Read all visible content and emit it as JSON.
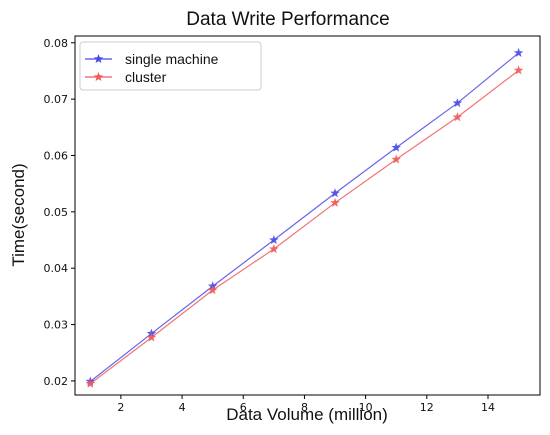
{
  "chart_data": {
    "type": "line",
    "title": "Data Write Performance",
    "xlabel": "Data Volume (million)",
    "ylabel": "Time(second)",
    "xlim": [
      0.5,
      15.7
    ],
    "ylim": [
      0.0175,
      0.0812
    ],
    "x_ticks": [
      2,
      4,
      6,
      8,
      10,
      12,
      14
    ],
    "y_ticks": [
      0.02,
      0.03,
      0.04,
      0.05,
      0.06,
      0.07,
      0.08
    ],
    "x_tick_labels": [
      "2",
      "4",
      "6",
      "8",
      "10",
      "12",
      "14"
    ],
    "y_tick_labels": [
      "0.02",
      "0.03",
      "0.04",
      "0.05",
      "0.06",
      "0.07",
      "0.08"
    ],
    "x": [
      1,
      3,
      5,
      7,
      9,
      11,
      13,
      15
    ],
    "series": [
      {
        "name": "single machine",
        "color": "#4a4ae6",
        "marker": "star",
        "values": [
          0.0199,
          0.0284,
          0.0368,
          0.045,
          0.0533,
          0.0614,
          0.0693,
          0.0782
        ]
      },
      {
        "name": "cluster",
        "color": "#ee5a5a",
        "marker": "star",
        "values": [
          0.0195,
          0.0277,
          0.0361,
          0.0434,
          0.0516,
          0.0593,
          0.0668,
          0.0751
        ]
      }
    ],
    "grid": false,
    "legend_position": "top-left"
  }
}
